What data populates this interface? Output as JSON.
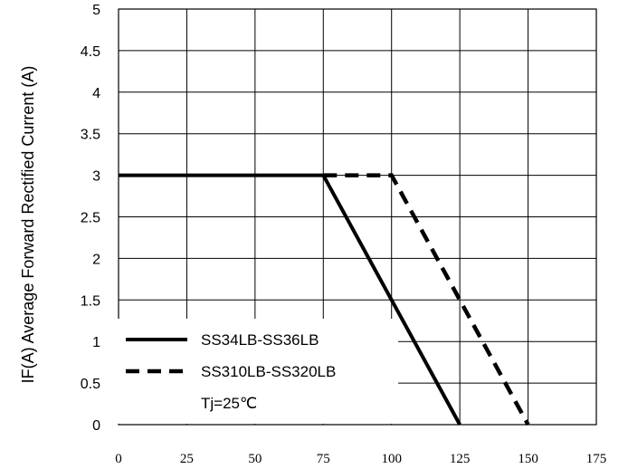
{
  "chart_data": {
    "type": "line",
    "ylabel": "IF(A)  Average Forward Rectified Current (A)",
    "xlabel": "",
    "xlim": [
      0,
      175
    ],
    "ylim": [
      0,
      5
    ],
    "x_ticks": [
      "0",
      "25",
      "50",
      "75",
      "100",
      "125",
      "150",
      "175"
    ],
    "y_ticks": [
      "0",
      "0.5",
      "1",
      "1.5",
      "2",
      "2.5",
      "3",
      "3.5",
      "4",
      "4.5",
      "5"
    ],
    "grid": true,
    "legend_position": "bottom-left",
    "series": [
      {
        "name": "SS34LB-SS36LB",
        "style": "solid",
        "x": [
          0,
          75,
          125
        ],
        "y": [
          3,
          3,
          0
        ]
      },
      {
        "name": "SS310LB-SS320LB",
        "style": "dashed",
        "x": [
          75,
          100,
          150
        ],
        "y": [
          3,
          3,
          0
        ]
      }
    ],
    "annotations": [
      "Tj=25℃"
    ],
    "colors": {
      "line": "#000000",
      "grid": "#000000"
    }
  }
}
